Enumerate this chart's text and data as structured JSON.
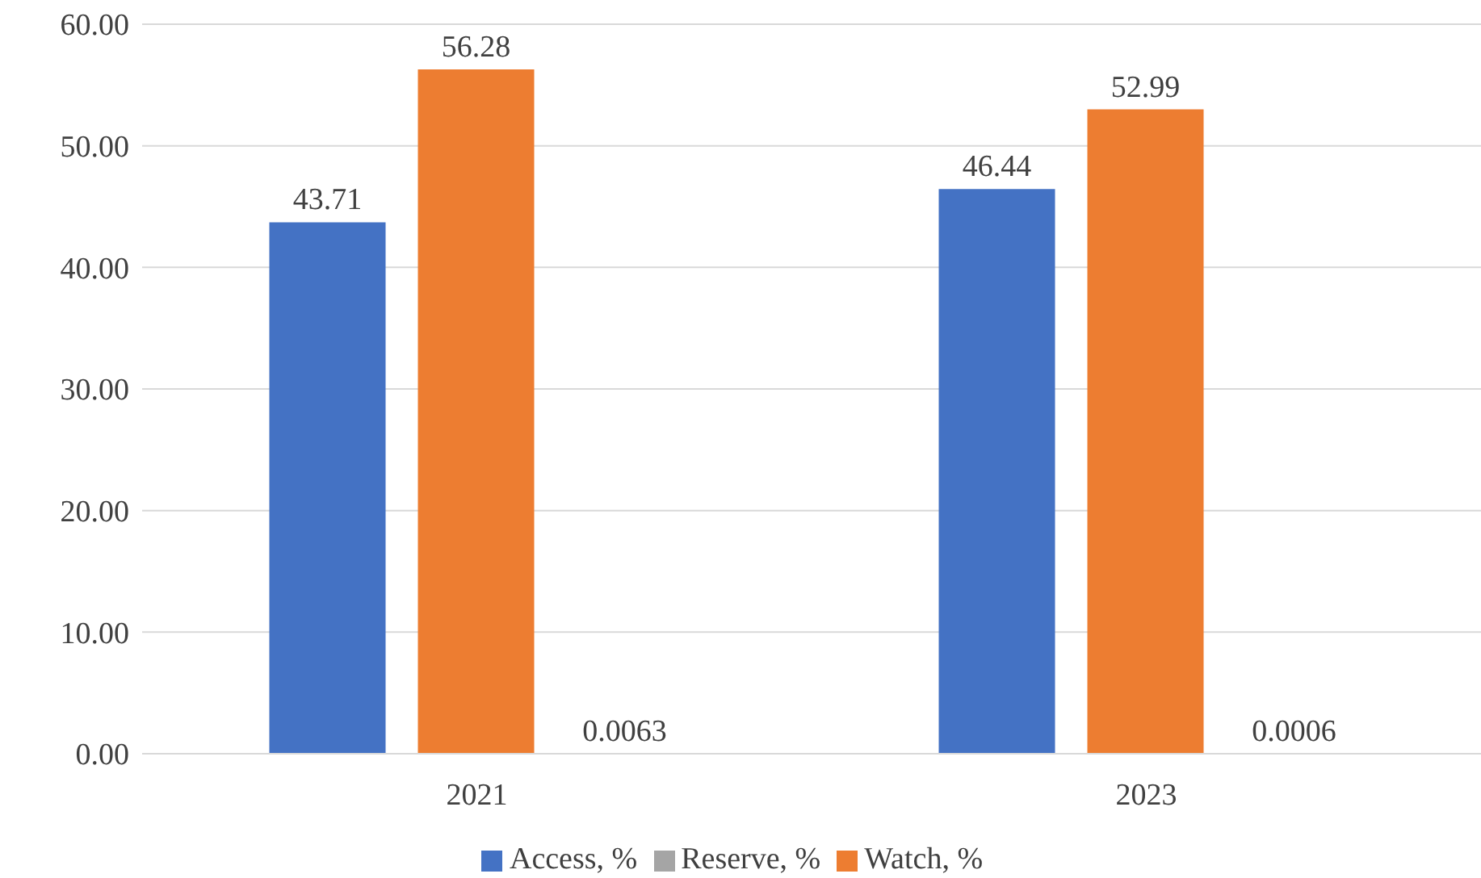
{
  "chart_data": {
    "type": "bar",
    "categories": [
      "2021",
      "2023"
    ],
    "series": [
      {
        "name": "Access, %",
        "color": "#4472c4",
        "values": [
          43.71,
          46.44
        ]
      },
      {
        "name": "Watch, %",
        "color": "#ed7d31",
        "values": [
          56.28,
          52.99
        ]
      },
      {
        "name": "Reserve, %",
        "color": "#a5a5a5",
        "values": [
          0.0063,
          0.0006
        ]
      }
    ],
    "ylim": [
      0,
      60
    ],
    "yticks": [
      {
        "value": 0,
        "label": "0.00"
      },
      {
        "value": 10,
        "label": "10.00"
      },
      {
        "value": 20,
        "label": "20.00"
      },
      {
        "value": 30,
        "label": "30.00"
      },
      {
        "value": 40,
        "label": "40.00"
      },
      {
        "value": 50,
        "label": "50.00"
      },
      {
        "value": 60,
        "label": "60.00"
      }
    ],
    "grid": "y",
    "legend": "bottom",
    "data_labels": true
  }
}
